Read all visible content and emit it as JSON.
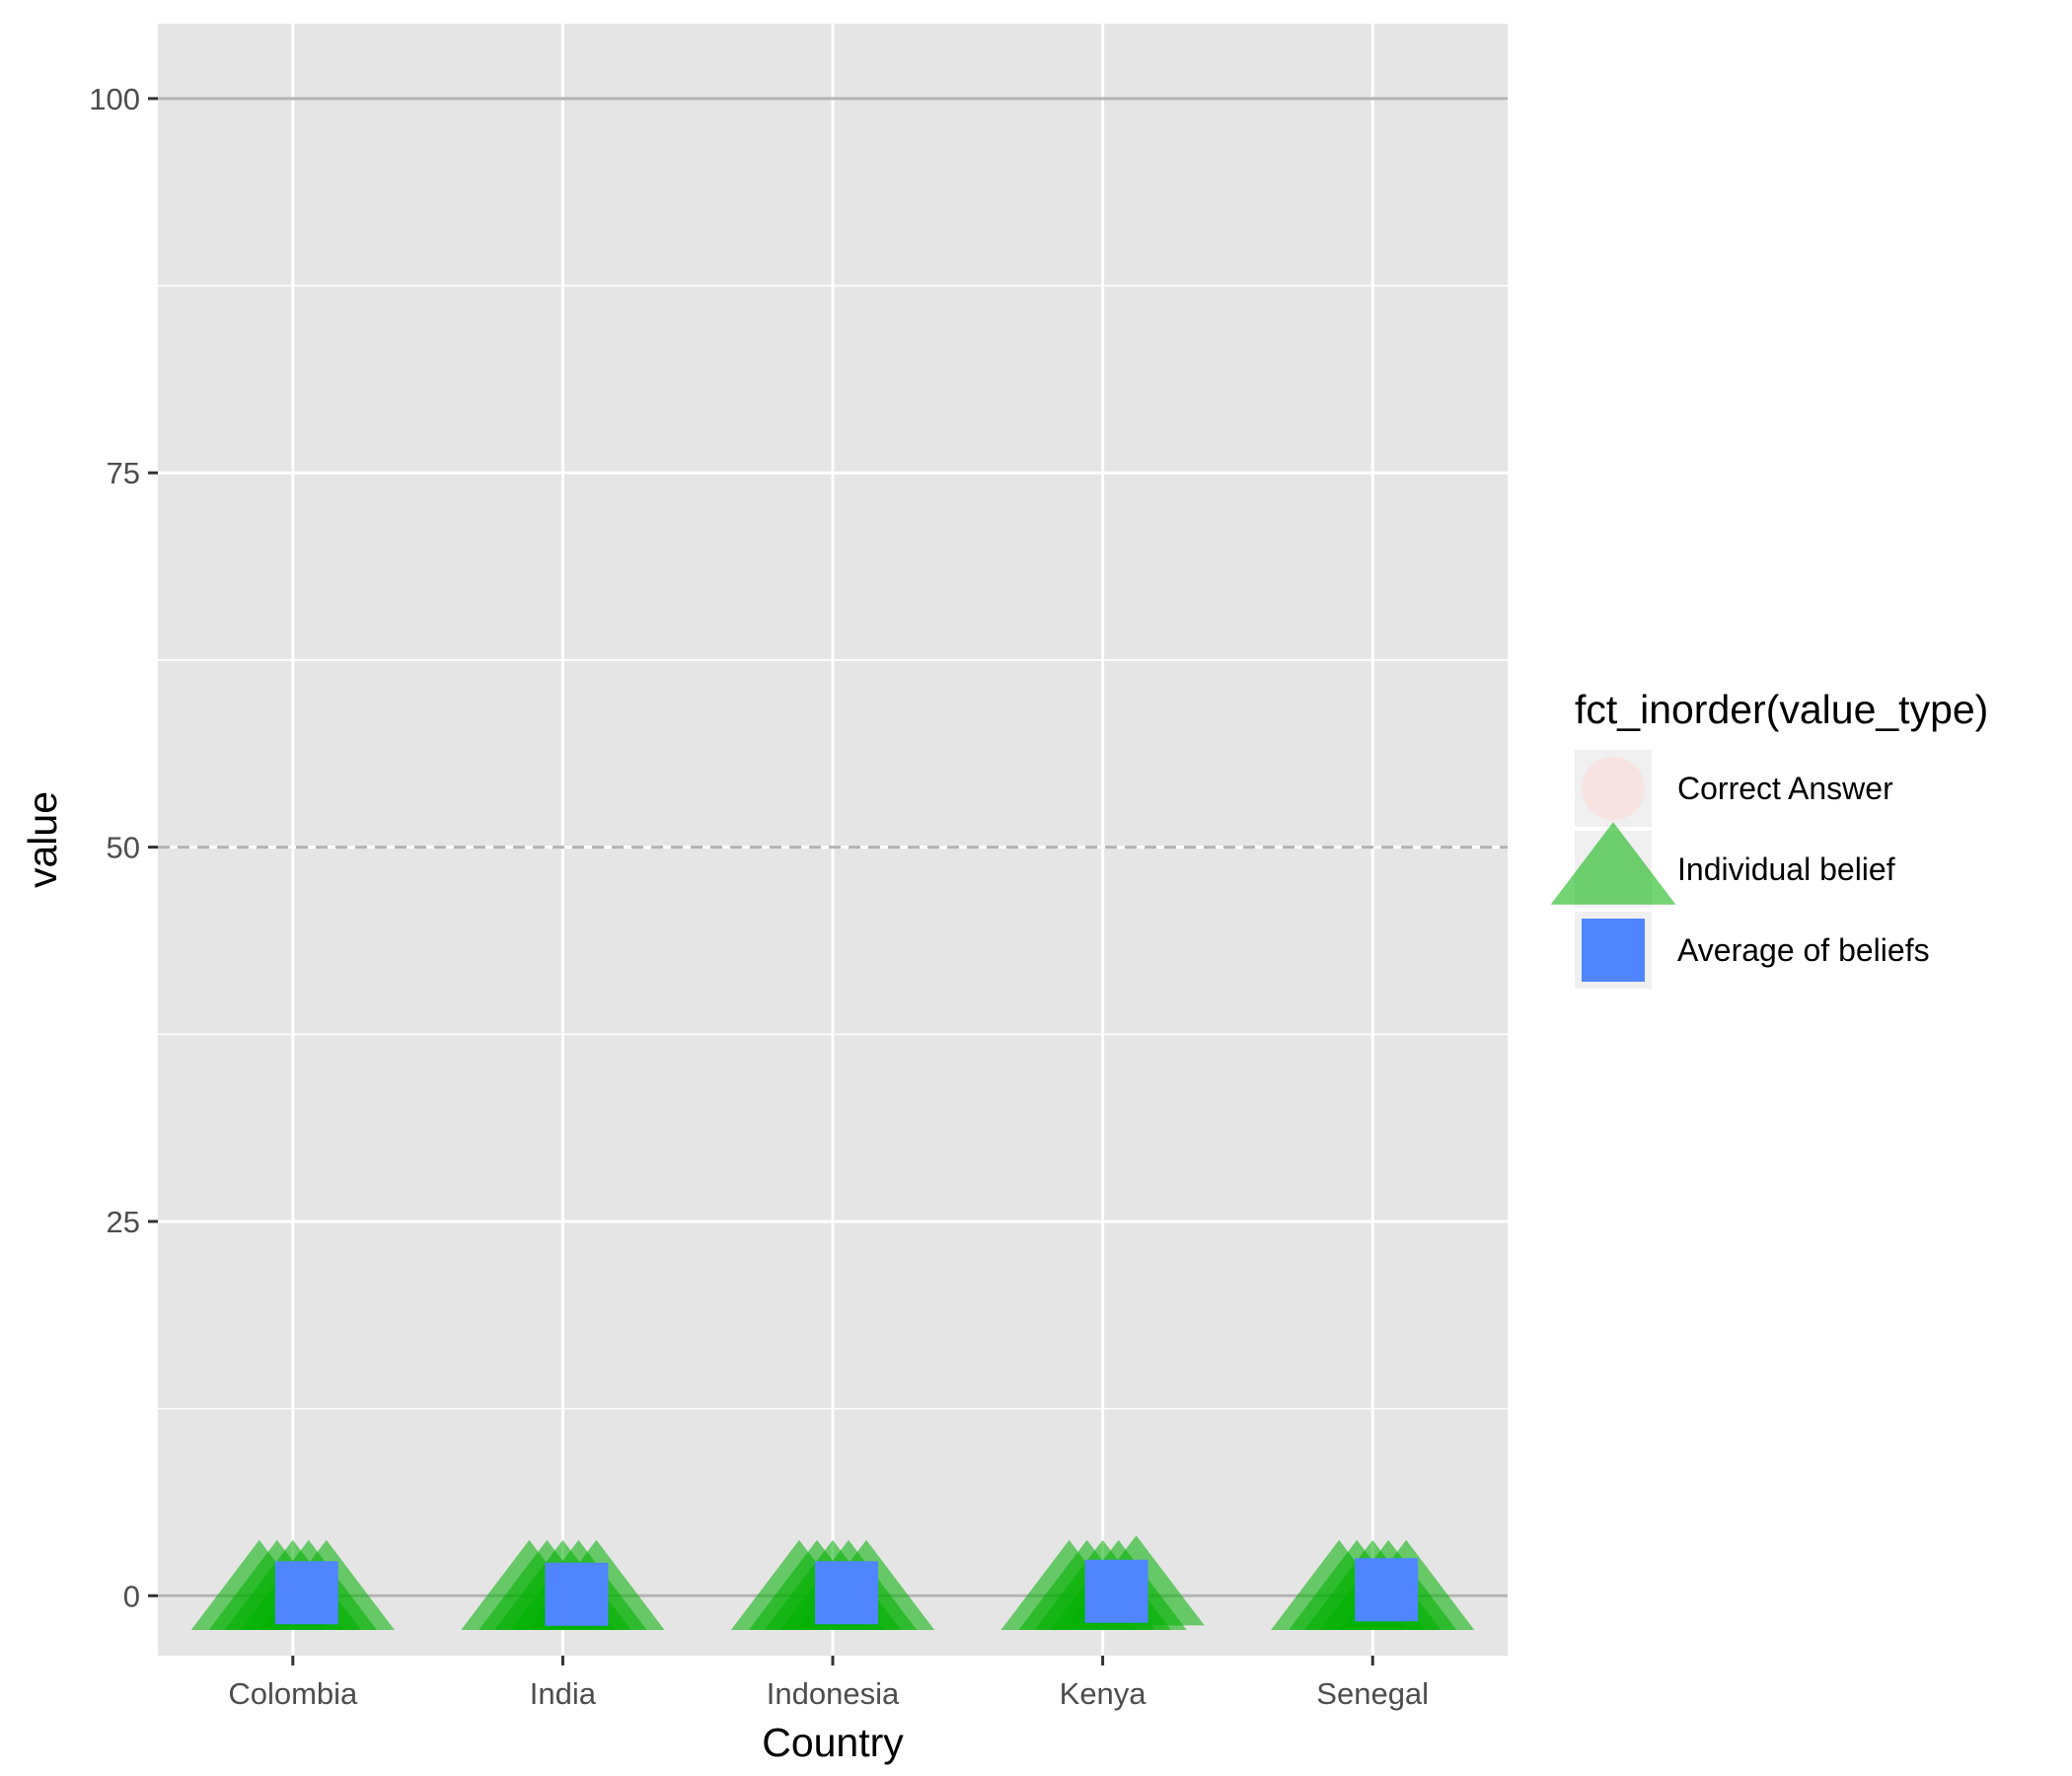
{
  "chart_data": {
    "type": "scatter",
    "title": "",
    "xlabel": "Country",
    "ylabel": "value",
    "categories": [
      "Colombia",
      "India",
      "Indonesia",
      "Kenya",
      "Senegal"
    ],
    "ylim": [
      -4,
      105
    ],
    "yticks": [
      0,
      25,
      50,
      75,
      100
    ],
    "grid": true,
    "reference_lines": [
      {
        "y": 0,
        "style": "solid"
      },
      {
        "y": 50,
        "style": "dashed"
      },
      {
        "y": 100,
        "style": "solid"
      }
    ],
    "legend": {
      "title": "fct_inorder(value_type)",
      "placement": "right",
      "entries": [
        {
          "label": "Correct Answer",
          "shape": "circle",
          "color": "#ffd9d9"
        },
        {
          "label": "Individual belief",
          "shape": "triangle",
          "color": "#00b000"
        },
        {
          "label": "Average of beliefs",
          "shape": "square",
          "color": "#4f86ff"
        }
      ]
    },
    "series": [
      {
        "name": "Correct Answer",
        "values": [
          0,
          0,
          0,
          0,
          0
        ]
      },
      {
        "name": "Individual belief",
        "points": [
          {
            "x": "Colombia",
            "y": 0
          },
          {
            "x": "Colombia",
            "y": 0
          },
          {
            "x": "Colombia",
            "y": 0
          },
          {
            "x": "Colombia",
            "y": 0
          },
          {
            "x": "Colombia",
            "y": 0
          },
          {
            "x": "India",
            "y": 0
          },
          {
            "x": "India",
            "y": 0
          },
          {
            "x": "India",
            "y": 0
          },
          {
            "x": "India",
            "y": 0
          },
          {
            "x": "India",
            "y": 0
          },
          {
            "x": "Indonesia",
            "y": 0
          },
          {
            "x": "Indonesia",
            "y": 0
          },
          {
            "x": "Indonesia",
            "y": 0
          },
          {
            "x": "Indonesia",
            "y": 0
          },
          {
            "x": "Indonesia",
            "y": 0
          },
          {
            "x": "Kenya",
            "y": 0
          },
          {
            "x": "Kenya",
            "y": 0
          },
          {
            "x": "Kenya",
            "y": 0
          },
          {
            "x": "Kenya",
            "y": 0
          },
          {
            "x": "Kenya",
            "y": 0.3
          },
          {
            "x": "Senegal",
            "y": 0
          },
          {
            "x": "Senegal",
            "y": 0
          },
          {
            "x": "Senegal",
            "y": 0
          },
          {
            "x": "Senegal",
            "y": 0
          },
          {
            "x": "Senegal",
            "y": 0
          }
        ]
      },
      {
        "name": "Average of beliefs",
        "values": [
          0.2,
          0.1,
          0.2,
          0.3,
          0.4
        ]
      }
    ]
  }
}
